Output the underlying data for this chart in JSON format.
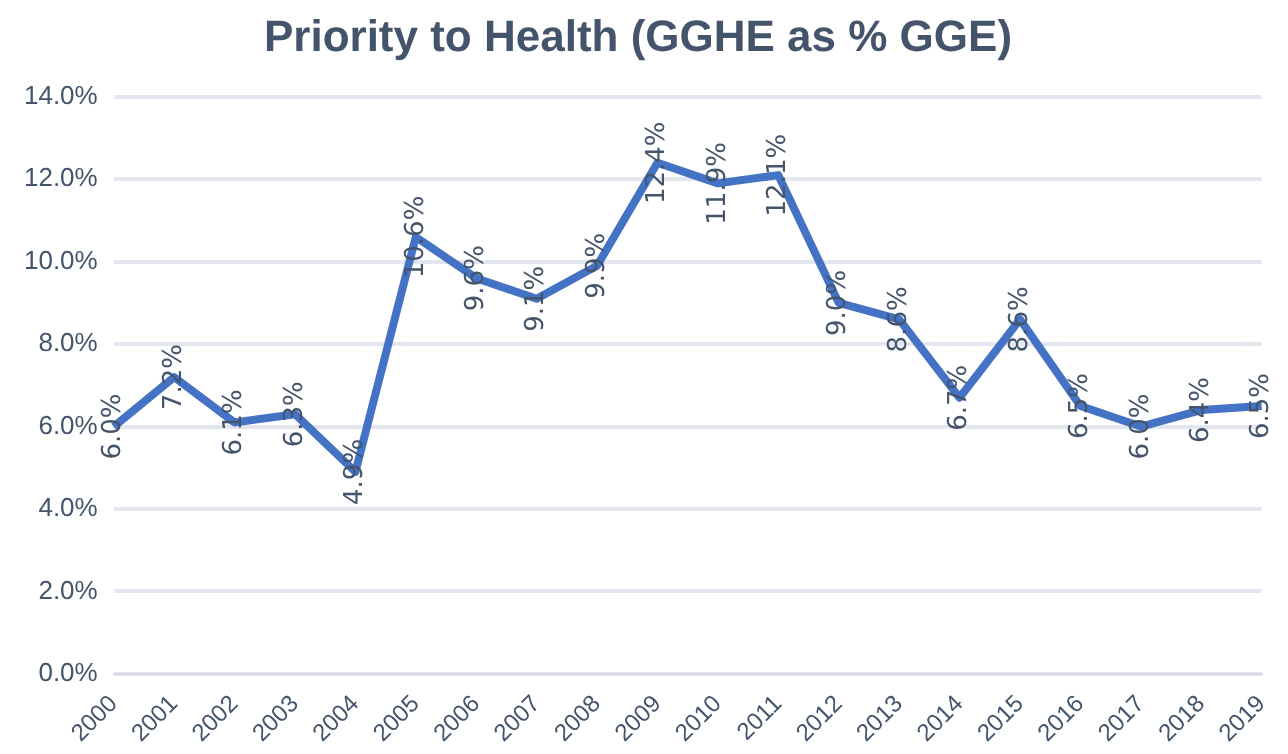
{
  "chart_data": {
    "type": "line",
    "title": "Priority to Health (GGHE as % GGE)",
    "categories": [
      "2000",
      "2001",
      "2002",
      "2003",
      "2004",
      "2005",
      "2006",
      "2007",
      "2008",
      "2009",
      "2010",
      "2011",
      "2012",
      "2013",
      "2014",
      "2015",
      "2016",
      "2017",
      "2018",
      "2019"
    ],
    "values": [
      6.0,
      7.2,
      6.1,
      6.3,
      4.9,
      10.6,
      9.6,
      9.1,
      9.9,
      12.4,
      11.9,
      12.1,
      9.0,
      8.6,
      6.7,
      8.6,
      6.5,
      6.0,
      6.4,
      6.5
    ],
    "value_labels": [
      "6.0%",
      "7.2%",
      "6.1%",
      "6.3%",
      "4.9%",
      "10.6%",
      "9.6%",
      "9.1%",
      "9.9%",
      "12.4%",
      "11.9%",
      "12.1%",
      "9.0%",
      "8.6%",
      "6.7%",
      "8.6%",
      "6.5%",
      "6.0%",
      "6.4%",
      "6.5%"
    ],
    "color": "#4472c4",
    "ylim": [
      0,
      14
    ],
    "yticks": [
      {
        "value": 0,
        "label": "0.0%"
      },
      {
        "value": 2,
        "label": "2.0%"
      },
      {
        "value": 4,
        "label": "4.0%"
      },
      {
        "value": 6,
        "label": "6.0%"
      },
      {
        "value": 8,
        "label": "8.0%"
      },
      {
        "value": 10,
        "label": "10.0%"
      },
      {
        "value": 12,
        "label": "12.0%"
      },
      {
        "value": 14,
        "label": "14.0%"
      }
    ],
    "grid": "y",
    "legend": false,
    "marker": "none",
    "line_style": "solid"
  }
}
